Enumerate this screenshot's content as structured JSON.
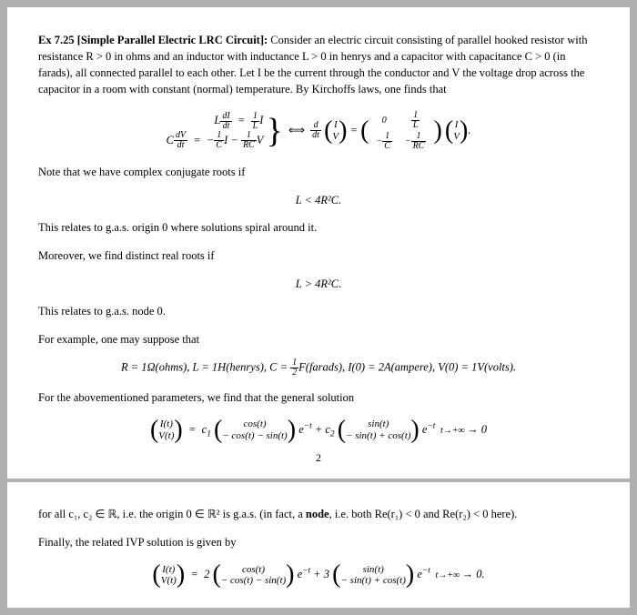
{
  "typography": {
    "body_font": "Times New Roman",
    "body_size_pt": 10,
    "title_weight": "bold",
    "text_color": "#000000",
    "background_color": "#ffffff",
    "page_gap_color": "#b0b0b0"
  },
  "exercise": {
    "label": "Ex 7.25 [Simple Parallel Electric LRC Circuit]:",
    "intro": "Consider an electric circuit consisting of parallel hooked resistor with resistance R > 0 in ohms and an inductor with inductance L > 0 in henrys and a capacitor with capacitance C > 0 (in farads), all connected parallel to each other. Let I be the current through the conductor and V the voltage drop across the capacitor in a room with constant (normal) temperature. By Kirchoffs laws, one finds that",
    "ode_system": {
      "eq1_lhs": "L dI/dt",
      "eq1_rhs": "(1/L) I",
      "eq2_lhs": "C dV/dt",
      "eq2_rhs": "−(1/C) I − (1/RC) V",
      "matrix_form_lhs": "d/dt (I; V)",
      "matrix_form_matrix": [
        [
          "0",
          "1/L"
        ],
        [
          "−1/C",
          "−1/RC"
        ]
      ],
      "matrix_form_vec": "(I; V)"
    },
    "note_conj": "Note that we have complex conjugate roots if",
    "cond_conj": "L  <  4R²C.",
    "spiral_text": "This relates to g.a.s. origin 0 where solutions spiral around it.",
    "distinct_text": "Moreover, we find distinct real roots if",
    "cond_real": "L  >  4R²C.",
    "node_text": "This relates to g.a.s. node 0.",
    "example_lead": "For example, one may suppose that",
    "params": "R = 1Ω(ohms), L = 1H(henrys), C = ½F(farads), I(0) = 2A(ampere), V(0) = 1V(volts).",
    "gen_sol_lead": "For the abovementioned parameters, we find that the general solution",
    "gen_sol": {
      "lhs": "(I(t); V(t))",
      "term1_vec": [
        "cos(t)",
        "− cos(t) − sin(t)"
      ],
      "term1_coef": "c₁",
      "term1_exp": "e^{−t}",
      "term2_vec": [
        "sin(t)",
        "− sin(t) + cos(t)"
      ],
      "term2_coef": "c₂",
      "term2_exp": "e^{−t}",
      "limit": "→ 0 as t→+∞"
    },
    "page_number": "2",
    "gas_text": "for all c₁, c₂ ∈ ℝ, i.e. the origin 0 ∈ ℝ² is g.a.s. (in fact, a ",
    "gas_bold": "node",
    "gas_text2": ", i.e. both Re(r₁) < 0 and Re(r₂) < 0 here).",
    "ivp_lead": "Finally, the related IVP solution is given by",
    "ivp_sol": {
      "lhs": "(I(t); V(t))",
      "term1_coef": "2",
      "term1_vec": [
        "cos(t)",
        "− cos(t) − sin(t)"
      ],
      "term1_exp": "e^{−t}",
      "term2_coef": "3",
      "term2_vec": [
        "sin(t)",
        "− sin(t) + cos(t)"
      ],
      "term2_exp": "e^{−t}",
      "limit": "→ 0 as t→+∞."
    }
  }
}
